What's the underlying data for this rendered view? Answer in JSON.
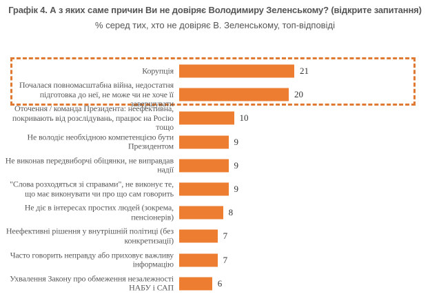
{
  "chart_data": {
    "type": "bar",
    "orientation": "horizontal",
    "title": "Графік 4. А з яких саме причин Ви не довіряє Володимиру Зеленському? (відкрите запитання)",
    "subtitle": "% серед тих, хто не довіряє В. Зеленському, топ-відповіді",
    "categories": [
      "Корупція",
      "Почалася повномасштабна війна, недостатня підготовка до неї, не може чи не хоче її завершувати",
      "Оточення / команда Президента: неефективна, покривають від розслідувань, працює на Росію тощо",
      "Не володіє необхідною компетенцією бути Президентом",
      "Не виконав передвиборчі обіцянки, не виправдав надії",
      "\"Слова розходяться зі справами\", не виконує те, що має виконувати чи про що сам говорить",
      "Не діє в інтересах простих людей (зокрема, пенсіонерів)",
      "Неефективні рішення у внутрішній політиці (без конкретизації)",
      "Часто говорить неправду або приховує важливу інформацію",
      "Ухвалення Закону про обмеження незалежності НАБУ і САП"
    ],
    "values": [
      21,
      20,
      10,
      9,
      9,
      9,
      8,
      7,
      7,
      6
    ],
    "highlighted": [
      0,
      1
    ],
    "bar_color": "#ED7D31",
    "highlight_color": "#E07A32",
    "grid": false,
    "data_labels": true
  }
}
